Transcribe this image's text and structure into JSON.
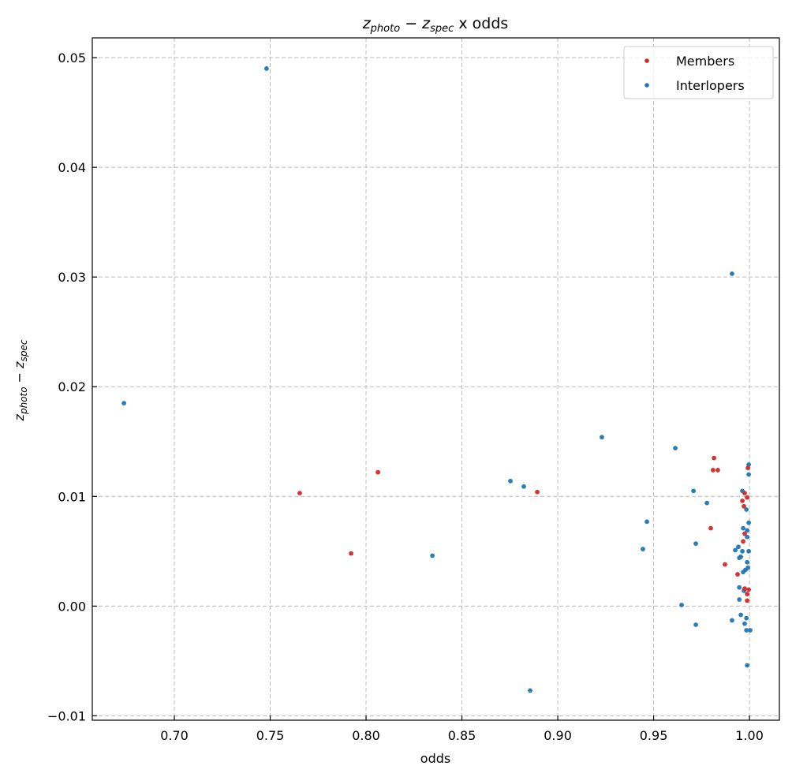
{
  "chart_data": {
    "type": "scatter",
    "title": {
      "z1": "z",
      "sub1": "photo",
      "minus": " − ",
      "z2": "z",
      "sub2": "spec",
      "suffix": " x odds"
    },
    "xlabel": "odds",
    "ylabel": {
      "z1": "z",
      "sub1": "photo",
      "minus": " − ",
      "z2": "z",
      "sub2": "spec"
    },
    "xlim": [
      0.6572,
      1.0156
    ],
    "ylim": [
      -0.0104,
      0.0518
    ],
    "xticks": [
      0.7,
      0.75,
      0.8,
      0.85,
      0.9,
      0.95,
      1.0
    ],
    "xtick_labels": [
      "0.70",
      "0.75",
      "0.80",
      "0.85",
      "0.90",
      "0.95",
      "1.00"
    ],
    "yticks": [
      -0.01,
      0.0,
      0.01,
      0.02,
      0.03,
      0.04,
      0.05
    ],
    "ytick_labels": [
      "−0.01",
      "0.00",
      "0.01",
      "0.02",
      "0.03",
      "0.04",
      "0.05"
    ],
    "grid": true,
    "legend_position": "top-right",
    "series": [
      {
        "name": "Members",
        "color": "#d62728",
        "points": [
          [
            0.7654,
            0.0103
          ],
          [
            0.7922,
            0.0048
          ],
          [
            0.8062,
            0.0122
          ],
          [
            0.8893,
            0.0104
          ],
          [
            0.9815,
            0.0135
          ],
          [
            0.981,
            0.0124
          ],
          [
            0.9835,
            0.0124
          ],
          [
            0.9992,
            0.0126
          ],
          [
            0.9975,
            0.0103
          ],
          [
            0.9988,
            0.0099
          ],
          [
            0.9963,
            0.0096
          ],
          [
            0.9971,
            0.0091
          ],
          [
            0.9798,
            0.0071
          ],
          [
            0.9975,
            0.0066
          ],
          [
            0.9967,
            0.0059
          ],
          [
            0.9872,
            0.0038
          ],
          [
            0.9938,
            0.0029
          ],
          [
            0.9975,
            0.0016
          ],
          [
            0.9996,
            0.0015
          ],
          [
            0.9988,
            0.0011
          ],
          [
            0.9988,
            0.0005
          ]
        ]
      },
      {
        "name": "Interlopers",
        "color": "#1f77b4",
        "points": [
          [
            0.7481,
            0.049
          ],
          [
            0.6737,
            0.0185
          ],
          [
            0.9909,
            0.0303
          ],
          [
            0.923,
            0.0154
          ],
          [
            0.9613,
            0.0144
          ],
          [
            0.8753,
            0.0114
          ],
          [
            0.8823,
            0.0109
          ],
          [
            0.8346,
            0.0046
          ],
          [
            0.9465,
            0.0077
          ],
          [
            0.9444,
            0.0052
          ],
          [
            0.9708,
            0.0105
          ],
          [
            0.9778,
            0.0094
          ],
          [
            0.972,
            0.0057
          ],
          [
            0.9646,
            0.0001
          ],
          [
            0.972,
            -0.0017
          ],
          [
            0.9909,
            -0.0013
          ],
          [
            0.8856,
            -0.0077
          ],
          [
            0.9996,
            0.0129
          ],
          [
            0.9996,
            0.012
          ],
          [
            0.9963,
            0.0105
          ],
          [
            0.9984,
            0.0088
          ],
          [
            0.9996,
            0.0076
          ],
          [
            0.9967,
            0.0071
          ],
          [
            0.9988,
            0.0069
          ],
          [
            0.9988,
            0.0063
          ],
          [
            0.9942,
            0.0054
          ],
          [
            0.9926,
            0.0051
          ],
          [
            0.9963,
            0.005
          ],
          [
            0.9996,
            0.005
          ],
          [
            0.9947,
            0.0044
          ],
          [
            0.9955,
            0.0045
          ],
          [
            0.9988,
            0.004
          ],
          [
            0.9979,
            0.0033
          ],
          [
            0.9967,
            0.0031
          ],
          [
            0.9992,
            0.0035
          ],
          [
            0.9947,
            0.0017
          ],
          [
            0.9971,
            0.0014
          ],
          [
            0.9947,
            0.0006
          ],
          [
            0.9955,
            -0.0008
          ],
          [
            0.9984,
            -0.0011
          ],
          [
            0.9975,
            -0.0016
          ],
          [
            0.9984,
            -0.0022
          ],
          [
            1.0004,
            -0.0022
          ],
          [
            0.9988,
            -0.0054
          ]
        ]
      }
    ]
  }
}
